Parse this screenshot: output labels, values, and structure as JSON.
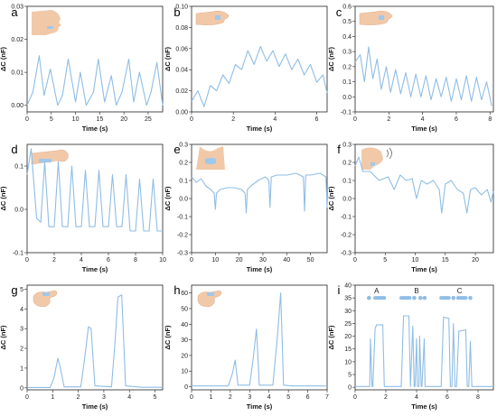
{
  "colors": {
    "line": "#8fbde6",
    "axis": "#222222",
    "skin": "#f1c9a8",
    "sensor": "#9ec8ec",
    "shade": "#e3a98a"
  },
  "chart_data": [
    {
      "panel": "a",
      "type": "line",
      "icon": "face-jaw-icon",
      "xlabel": "Time (s)",
      "ylabel": "ΔC (nF)",
      "xlim": [
        0,
        28
      ],
      "ylim": [
        -0.002,
        0.03
      ],
      "xticks": [
        "0",
        "5",
        "10",
        "15",
        "20",
        "25"
      ],
      "xtick_values": [
        0,
        5,
        10,
        15,
        20,
        25
      ],
      "yticks": [
        "0.00",
        "0.01",
        "0.02",
        "0.03"
      ],
      "ytick_values": [
        0,
        0.01,
        0.02,
        0.03
      ],
      "x": [
        0,
        1.2,
        2.5,
        3.5,
        4.8,
        6.3,
        7.3,
        8.5,
        10,
        11,
        12.2,
        13.7,
        14.7,
        16,
        17.4,
        18.4,
        19.6,
        21,
        22,
        23.2,
        24.7,
        25.6,
        26.8,
        28
      ],
      "y": [
        0.0,
        0.004,
        0.015,
        0.003,
        0.011,
        0.0,
        0.003,
        0.014,
        0.001,
        0.01,
        0.0,
        0.004,
        0.014,
        0.001,
        0.009,
        0.0,
        0.004,
        0.014,
        0.001,
        0.01,
        0.0,
        0.004,
        0.013,
        0.0
      ]
    },
    {
      "panel": "b",
      "type": "line",
      "icon": "wrist-pulse-icon",
      "xlabel": "Time (s)",
      "ylabel": "ΔC (nF)",
      "xlim": [
        0,
        6.5
      ],
      "ylim": [
        0,
        0.1
      ],
      "xticks": [
        "0",
        "2",
        "4",
        "6"
      ],
      "xtick_values": [
        0,
        2,
        4,
        6
      ],
      "yticks": [
        "0.00",
        "0.02",
        "0.04",
        "0.06",
        "0.08",
        "0.10"
      ],
      "ytick_values": [
        0,
        0.02,
        0.04,
        0.06,
        0.08,
        0.1
      ],
      "x": [
        0,
        0.3,
        0.6,
        0.9,
        1.2,
        1.5,
        1.8,
        2.1,
        2.4,
        2.7,
        3.0,
        3.3,
        3.6,
        3.9,
        4.2,
        4.5,
        4.8,
        5.1,
        5.4,
        5.7,
        6.0,
        6.3,
        6.5
      ],
      "y": [
        0.01,
        0.02,
        0.005,
        0.025,
        0.02,
        0.035,
        0.027,
        0.045,
        0.04,
        0.058,
        0.045,
        0.062,
        0.048,
        0.058,
        0.043,
        0.055,
        0.04,
        0.05,
        0.035,
        0.045,
        0.028,
        0.035,
        0.018
      ]
    },
    {
      "panel": "c",
      "type": "line",
      "icon": "wrist-pulse-icon",
      "xlabel": "Time (s)",
      "ylabel": "ΔC (nF)",
      "xlim": [
        0,
        8.2
      ],
      "ylim": [
        -0.1,
        0.6
      ],
      "xticks": [
        "0",
        "2",
        "4",
        "6",
        "8"
      ],
      "xtick_values": [
        0,
        2,
        4,
        6,
        8
      ],
      "yticks": [
        "-0.1",
        "0.0",
        "0.1",
        "0.2",
        "0.3",
        "0.4",
        "0.5",
        "0.6"
      ],
      "ytick_values": [
        -0.1,
        0,
        0.1,
        0.2,
        0.3,
        0.4,
        0.5,
        0.6
      ],
      "x": [
        0,
        0.3,
        0.55,
        0.8,
        1.05,
        1.3,
        1.55,
        1.85,
        2.1,
        2.4,
        2.7,
        3.0,
        3.3,
        3.6,
        3.9,
        4.2,
        4.5,
        4.8,
        5.1,
        5.4,
        5.7,
        6.0,
        6.3,
        6.6,
        6.9,
        7.2,
        7.5,
        7.8,
        8.1
      ],
      "y": [
        0.23,
        0.28,
        0.1,
        0.33,
        0.12,
        0.25,
        0.05,
        0.2,
        0.03,
        0.18,
        0.02,
        0.16,
        0.0,
        0.15,
        0.0,
        0.14,
        -0.02,
        0.12,
        0.0,
        0.13,
        -0.03,
        0.12,
        -0.02,
        0.14,
        -0.03,
        0.13,
        -0.02,
        0.1,
        -0.06
      ]
    },
    {
      "panel": "d",
      "type": "line",
      "icon": "arm-fist-icon",
      "xlabel": "Time (s)",
      "ylabel": "ΔC (nF)",
      "xlim": [
        0,
        10
      ],
      "ylim": [
        -0.1,
        0.15
      ],
      "xticks": [
        "0",
        "2",
        "4",
        "6",
        "8",
        "10"
      ],
      "xtick_values": [
        0,
        2,
        4,
        6,
        8,
        10
      ],
      "yticks": [
        "-0.1",
        "0.0",
        "0.1"
      ],
      "ytick_values": [
        -0.1,
        0,
        0.1
      ],
      "x": [
        0,
        0.3,
        0.7,
        1.0,
        1.3,
        1.6,
        2.0,
        2.3,
        2.6,
        3.0,
        3.3,
        3.6,
        4.0,
        4.3,
        4.6,
        5.0,
        5.3,
        5.6,
        6.0,
        6.3,
        6.6,
        7.0,
        7.3,
        7.6,
        8.0,
        8.3,
        8.6,
        9.0,
        9.3,
        9.6,
        10.0
      ],
      "y": [
        0.08,
        0.14,
        -0.02,
        -0.03,
        0.11,
        -0.04,
        -0.04,
        0.11,
        -0.04,
        -0.04,
        0.1,
        -0.04,
        -0.04,
        0.09,
        -0.04,
        -0.04,
        0.09,
        -0.04,
        -0.04,
        0.08,
        -0.04,
        -0.04,
        0.08,
        -0.05,
        -0.05,
        0.07,
        -0.05,
        -0.05,
        0.07,
        -0.05,
        -0.05
      ]
    },
    {
      "panel": "e",
      "type": "line",
      "icon": "throat-neck-icon",
      "xlabel": "Time (s)",
      "ylabel": "ΔC (nF)",
      "xlim": [
        0,
        57
      ],
      "ylim": [
        -0.3,
        0.3
      ],
      "xticks": [
        "0",
        "10",
        "20",
        "30",
        "40",
        "50"
      ],
      "xtick_values": [
        0,
        10,
        20,
        30,
        40,
        50
      ],
      "yticks": [
        "-0.3",
        "-0.2",
        "-0.1",
        "0.0",
        "0.1",
        "0.2",
        "0.3"
      ],
      "ytick_values": [
        -0.3,
        -0.2,
        -0.1,
        0,
        0.1,
        0.2,
        0.3
      ],
      "x": [
        0,
        2,
        4,
        6,
        8,
        9.5,
        10,
        10.5,
        12,
        15,
        18,
        21,
        22.5,
        23,
        23.5,
        25,
        28,
        31,
        32.5,
        33,
        33.5,
        36,
        40,
        44,
        47,
        47.5,
        48,
        50,
        54,
        56.5,
        57
      ],
      "y": [
        0.12,
        0.09,
        0.11,
        0.07,
        0.05,
        0.03,
        -0.06,
        0.03,
        0.05,
        0.06,
        0.06,
        0.05,
        0.03,
        -0.08,
        0.05,
        0.07,
        0.1,
        0.12,
        0.1,
        -0.05,
        0.12,
        0.13,
        0.13,
        0.14,
        0.12,
        -0.07,
        0.13,
        0.13,
        0.14,
        0.12,
        -0.05
      ]
    },
    {
      "panel": "f",
      "type": "line",
      "icon": "speaking-head-icon",
      "xlabel": "Time (s)",
      "ylabel": "ΔC (nF)",
      "xlim": [
        0,
        23
      ],
      "ylim": [
        -0.3,
        0.3
      ],
      "xticks": [
        "0",
        "5",
        "10",
        "15",
        "20"
      ],
      "xtick_values": [
        0,
        5,
        10,
        15,
        20
      ],
      "yticks": [
        "-0.3",
        "-0.2",
        "-0.1",
        "0.0",
        "0.1",
        "0.2",
        "0.3"
      ],
      "ytick_values": [
        -0.3,
        -0.2,
        -0.1,
        0,
        0.1,
        0.2,
        0.3
      ],
      "x": [
        0,
        0.6,
        1.3,
        2.5,
        4,
        5.5,
        6.5,
        7.5,
        8.5,
        9.5,
        10.2,
        11,
        12,
        13,
        14,
        14.4,
        15,
        16,
        17,
        18,
        18.6,
        19.2,
        20,
        21,
        22,
        22.6,
        23
      ],
      "y": [
        0.18,
        0.23,
        0.15,
        0.15,
        0.1,
        0.12,
        0.05,
        0.13,
        0.1,
        0.11,
        0.0,
        0.1,
        0.08,
        0.1,
        0.05,
        -0.08,
        0.08,
        0.1,
        0.05,
        0.03,
        -0.08,
        0.05,
        0.06,
        0.02,
        0.05,
        -0.02,
        0.04
      ]
    },
    {
      "panel": "g",
      "type": "line",
      "icon": "hand-finger-icon",
      "xlabel": "Time (s)",
      "ylabel": "ΔC (nF)",
      "xlim": [
        0,
        5.3
      ],
      "ylim": [
        -0.1,
        5.2
      ],
      "xticks": [
        "0",
        "1",
        "2",
        "3",
        "4",
        "5"
      ],
      "xtick_values": [
        0,
        1,
        2,
        3,
        4,
        5
      ],
      "yticks": [
        "0",
        "1",
        "2",
        "3",
        "4",
        "5"
      ],
      "ytick_values": [
        0,
        1,
        2,
        3,
        4,
        5
      ],
      "x": [
        0,
        0.9,
        1.05,
        1.2,
        1.3,
        1.45,
        2.1,
        2.25,
        2.4,
        2.5,
        2.65,
        3.3,
        3.45,
        3.55,
        3.7,
        3.85,
        4.5,
        5.3
      ],
      "y": [
        0.02,
        0.02,
        0.5,
        1.5,
        1.0,
        0.05,
        0.05,
        1.5,
        3.1,
        3.0,
        0.1,
        0.05,
        2.5,
        4.6,
        4.7,
        0.1,
        0.03,
        0.03
      ]
    },
    {
      "panel": "h",
      "type": "line",
      "icon": "hand-finger-icon",
      "xlabel": "Time (s)",
      "ylabel": "ΔC (nF)",
      "xlim": [
        0,
        7
      ],
      "ylim": [
        -2,
        65
      ],
      "xticks": [
        "0",
        "1",
        "2",
        "3",
        "4",
        "5",
        "6",
        "7"
      ],
      "xtick_values": [
        0,
        1,
        2,
        3,
        4,
        5,
        6,
        7
      ],
      "yticks": [
        "0",
        "10",
        "20",
        "30",
        "40",
        "50",
        "60"
      ],
      "ytick_values": [
        0,
        10,
        20,
        30,
        40,
        50,
        60
      ],
      "x": [
        0,
        1.9,
        2.1,
        2.25,
        2.4,
        3.0,
        3.2,
        3.35,
        3.5,
        4.2,
        4.45,
        4.6,
        4.75,
        5.2,
        7
      ],
      "y": [
        0.5,
        0.5,
        8,
        17,
        1,
        1,
        20,
        37,
        1,
        1,
        35,
        60,
        1,
        0.5,
        0.5
      ]
    },
    {
      "panel": "i",
      "type": "line",
      "icon": "none",
      "xlabel": "Time (s)",
      "ylabel": "ΔC (nF)",
      "xlim": [
        0,
        9
      ],
      "ylim": [
        -1,
        40
      ],
      "xticks": [
        "0",
        "2",
        "4",
        "6",
        "8"
      ],
      "xtick_values": [
        0,
        2,
        4,
        6,
        8
      ],
      "yticks": [
        "0",
        "5",
        "10",
        "15",
        "20",
        "25",
        "30",
        "35",
        "40"
      ],
      "ytick_values": [
        0,
        5,
        10,
        15,
        20,
        25,
        30,
        35,
        40
      ],
      "x": [
        0,
        0.95,
        1.0,
        1.1,
        1.15,
        1.3,
        1.4,
        1.8,
        1.9,
        3.0,
        3.15,
        3.5,
        3.6,
        3.75,
        3.85,
        3.9,
        4.0,
        4.05,
        4.15,
        4.2,
        4.3,
        4.35,
        4.5,
        4.55,
        5.6,
        5.75,
        6.1,
        6.2,
        6.3,
        6.4,
        6.5,
        6.6,
        6.75,
        6.8,
        7.2,
        7.3,
        7.4,
        7.5,
        7.6,
        9
      ],
      "y": [
        0.3,
        0.3,
        19,
        0.3,
        0.3,
        23,
        24.5,
        24.5,
        0.3,
        0.3,
        28,
        28,
        0.3,
        24,
        0.3,
        0.3,
        19,
        0.3,
        0.3,
        20,
        0.3,
        0.3,
        19,
        0.3,
        0.3,
        27.5,
        27,
        0.3,
        0.3,
        25,
        0.3,
        0.3,
        22,
        22,
        22.5,
        0.3,
        0.3,
        18,
        0.3,
        0.3
      ],
      "annotations": [
        "A",
        "B",
        "C"
      ],
      "annotation_x": [
        1.4,
        4.0,
        6.8
      ],
      "morse_y": 35,
      "morse_segments": [
        [
          0.75,
          1.05,
          "dot"
        ],
        [
          1.3,
          1.9,
          "dash"
        ],
        [
          3.0,
          3.55,
          "dash"
        ],
        [
          3.75,
          3.95,
          "dot"
        ],
        [
          4.15,
          4.35,
          "dot"
        ],
        [
          4.45,
          4.6,
          "dot"
        ],
        [
          5.6,
          6.1,
          "dash"
        ],
        [
          6.3,
          6.5,
          "dot"
        ],
        [
          6.7,
          7.2,
          "dash"
        ],
        [
          7.4,
          7.6,
          "dot"
        ]
      ]
    }
  ]
}
